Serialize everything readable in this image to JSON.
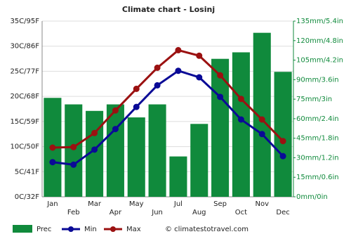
{
  "chart_data": {
    "type": "combo",
    "title": "Climate chart - Losinj",
    "categories": [
      "Jan",
      "Feb",
      "Mar",
      "Apr",
      "May",
      "Jun",
      "Jul",
      "Aug",
      "Sep",
      "Oct",
      "Nov",
      "Dec"
    ],
    "series": [
      {
        "name": "Prec",
        "type": "bar",
        "axis": "y2",
        "color": "#108a3c",
        "values": [
          76,
          71,
          66,
          71,
          61,
          71,
          31,
          56,
          106,
          111,
          126,
          96
        ]
      },
      {
        "name": "Min",
        "type": "line",
        "color": "#0a0a96",
        "values": [
          6.9,
          6.4,
          9.4,
          13.5,
          17.9,
          22.2,
          25.1,
          23.8,
          19.9,
          15.4,
          12.5,
          8.1
        ]
      },
      {
        "name": "Max",
        "type": "line",
        "color": "#9b1111",
        "values": [
          9.8,
          9.9,
          12.7,
          17.2,
          21.5,
          25.7,
          29.2,
          28.1,
          24.2,
          19.5,
          15.4,
          11.1
        ]
      }
    ],
    "ylim": [
      0,
      35
    ],
    "yticks": [
      {
        "value": 0,
        "label": "0C/32F"
      },
      {
        "value": 5,
        "label": "5C/41F"
      },
      {
        "value": 10,
        "label": "10C/50F"
      },
      {
        "value": 15,
        "label": "15C/59F"
      },
      {
        "value": 20,
        "label": "20C/68F"
      },
      {
        "value": 25,
        "label": "25C/77F"
      },
      {
        "value": 30,
        "label": "30C/86F"
      },
      {
        "value": 35,
        "label": "35C/95F"
      }
    ],
    "y2lim": [
      0,
      135
    ],
    "y2ticks": [
      {
        "value": 0,
        "label": "0mm/0in"
      },
      {
        "value": 15,
        "label": "15mm/0.6in"
      },
      {
        "value": 30,
        "label": "30mm/1.2in"
      },
      {
        "value": 45,
        "label": "45mm/1.8in"
      },
      {
        "value": 60,
        "label": "60mm/2.4in"
      },
      {
        "value": 75,
        "label": "75mm/3in"
      },
      {
        "value": 90,
        "label": "90mm/3.6in"
      },
      {
        "value": 105,
        "label": "105mm/4.2in"
      },
      {
        "value": 120,
        "label": "120mm/4.8in"
      },
      {
        "value": 135,
        "label": "135mm/5.4in"
      }
    ],
    "grid": true,
    "source": "© climatestotravel.com"
  }
}
